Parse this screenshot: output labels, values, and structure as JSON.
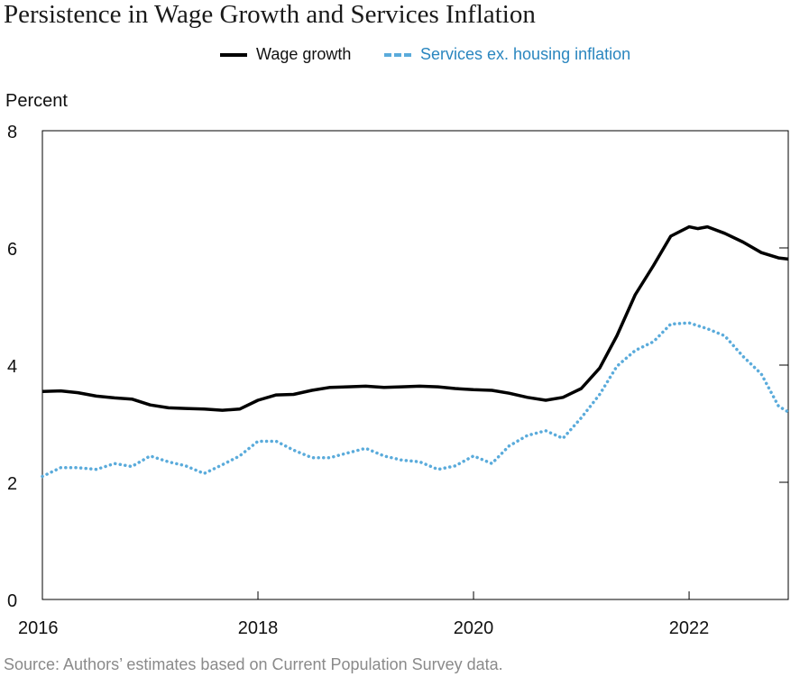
{
  "chart_data": {
    "type": "line",
    "title": "Persistence in Wage Growth and Services Inflation",
    "ylabel": "Percent",
    "xlabel": "",
    "xlim": [
      2016.0,
      2022.92
    ],
    "ylim": [
      0,
      8
    ],
    "x_ticks": [
      "2016",
      "2018",
      "2020",
      "2022"
    ],
    "x_tick_values": [
      2016,
      2018,
      2020,
      2022
    ],
    "y_ticks": [
      "0",
      "2",
      "4",
      "6",
      "8"
    ],
    "y_tick_values": [
      0,
      2,
      4,
      6,
      8
    ],
    "grid": false,
    "legend_position": "top",
    "source": "Source: Authors’ estimates based on Current Population Survey data.",
    "series": [
      {
        "name": "Wage growth",
        "color": "#000000",
        "style": "solid",
        "points": [
          [
            2016.0,
            3.55
          ],
          [
            2016.17,
            3.56
          ],
          [
            2016.33,
            3.53
          ],
          [
            2016.5,
            3.47
          ],
          [
            2016.67,
            3.44
          ],
          [
            2016.83,
            3.42
          ],
          [
            2017.0,
            3.32
          ],
          [
            2017.17,
            3.27
          ],
          [
            2017.33,
            3.26
          ],
          [
            2017.5,
            3.25
          ],
          [
            2017.67,
            3.23
          ],
          [
            2017.83,
            3.25
          ],
          [
            2018.0,
            3.4
          ],
          [
            2018.17,
            3.49
          ],
          [
            2018.33,
            3.5
          ],
          [
            2018.5,
            3.57
          ],
          [
            2018.67,
            3.62
          ],
          [
            2018.83,
            3.63
          ],
          [
            2019.0,
            3.64
          ],
          [
            2019.17,
            3.62
          ],
          [
            2019.33,
            3.63
          ],
          [
            2019.5,
            3.64
          ],
          [
            2019.67,
            3.63
          ],
          [
            2019.83,
            3.6
          ],
          [
            2020.0,
            3.58
          ],
          [
            2020.17,
            3.57
          ],
          [
            2020.33,
            3.52
          ],
          [
            2020.5,
            3.45
          ],
          [
            2020.67,
            3.4
          ],
          [
            2020.83,
            3.45
          ],
          [
            2021.0,
            3.6
          ],
          [
            2021.17,
            3.95
          ],
          [
            2021.33,
            4.5
          ],
          [
            2021.5,
            5.2
          ],
          [
            2021.67,
            5.7
          ],
          [
            2021.83,
            6.2
          ],
          [
            2022.0,
            6.36
          ],
          [
            2022.08,
            6.33
          ],
          [
            2022.17,
            6.36
          ],
          [
            2022.33,
            6.25
          ],
          [
            2022.5,
            6.1
          ],
          [
            2022.67,
            5.92
          ],
          [
            2022.83,
            5.83
          ],
          [
            2022.92,
            5.81
          ]
        ]
      },
      {
        "name": "Services ex. housing inflation",
        "color": "#5aabdb",
        "style": "dotted",
        "points": [
          [
            2016.0,
            2.1
          ],
          [
            2016.17,
            2.25
          ],
          [
            2016.33,
            2.25
          ],
          [
            2016.5,
            2.22
          ],
          [
            2016.67,
            2.32
          ],
          [
            2016.83,
            2.27
          ],
          [
            2017.0,
            2.45
          ],
          [
            2017.17,
            2.35
          ],
          [
            2017.33,
            2.28
          ],
          [
            2017.5,
            2.15
          ],
          [
            2017.67,
            2.3
          ],
          [
            2017.83,
            2.45
          ],
          [
            2018.0,
            2.7
          ],
          [
            2018.17,
            2.7
          ],
          [
            2018.33,
            2.55
          ],
          [
            2018.5,
            2.42
          ],
          [
            2018.67,
            2.42
          ],
          [
            2018.83,
            2.5
          ],
          [
            2019.0,
            2.58
          ],
          [
            2019.17,
            2.45
          ],
          [
            2019.33,
            2.38
          ],
          [
            2019.5,
            2.35
          ],
          [
            2019.67,
            2.22
          ],
          [
            2019.83,
            2.28
          ],
          [
            2020.0,
            2.45
          ],
          [
            2020.17,
            2.32
          ],
          [
            2020.33,
            2.62
          ],
          [
            2020.5,
            2.8
          ],
          [
            2020.67,
            2.88
          ],
          [
            2020.83,
            2.75
          ],
          [
            2021.0,
            3.1
          ],
          [
            2021.17,
            3.5
          ],
          [
            2021.33,
            3.98
          ],
          [
            2021.5,
            4.25
          ],
          [
            2021.67,
            4.4
          ],
          [
            2021.83,
            4.7
          ],
          [
            2022.0,
            4.72
          ],
          [
            2022.17,
            4.62
          ],
          [
            2022.33,
            4.5
          ],
          [
            2022.5,
            4.15
          ],
          [
            2022.67,
            3.85
          ],
          [
            2022.83,
            3.3
          ],
          [
            2022.92,
            3.2
          ]
        ]
      }
    ]
  }
}
